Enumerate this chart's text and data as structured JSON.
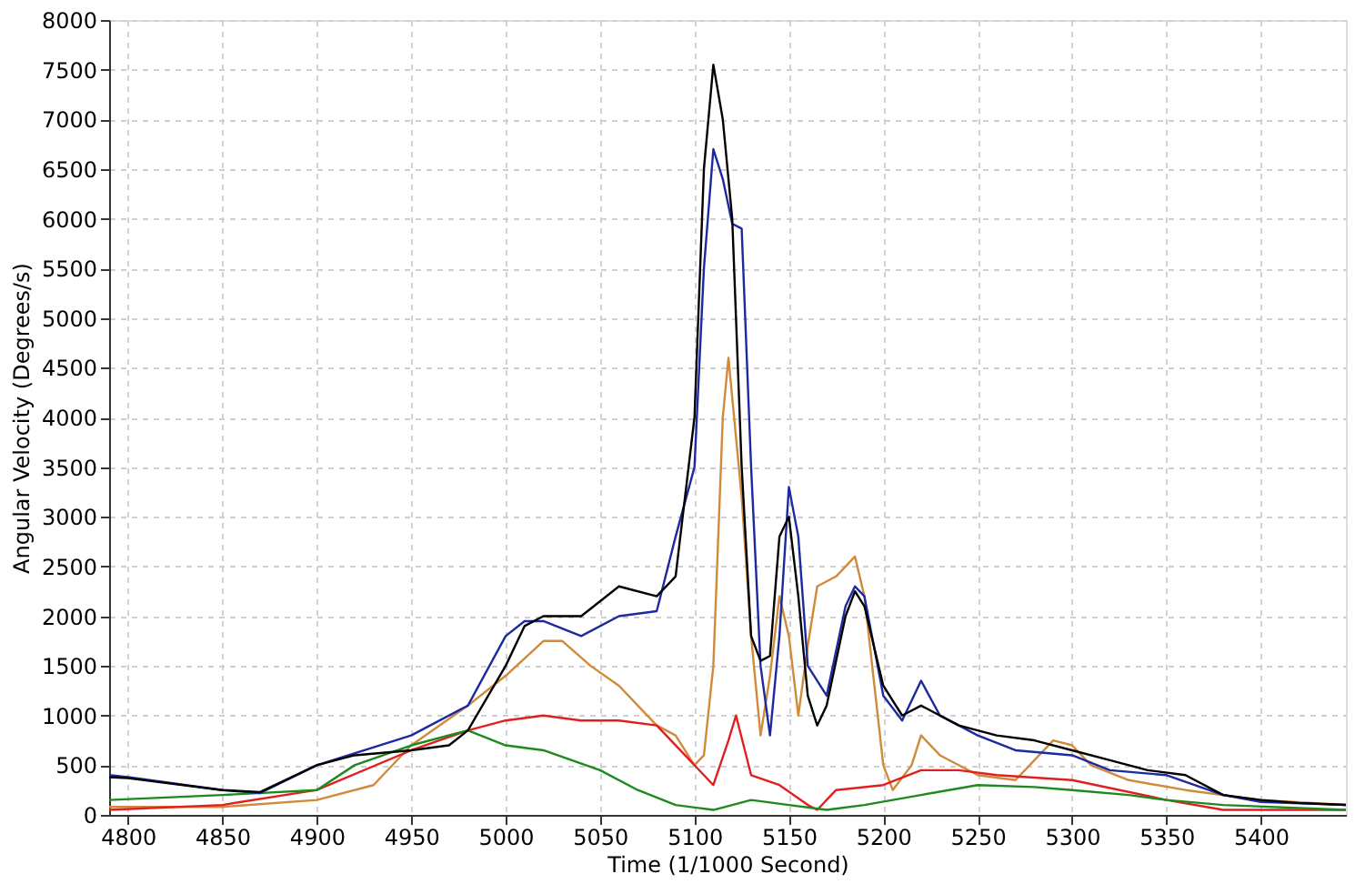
{
  "chart_data": {
    "type": "line",
    "xlabel": "Time (1/1000 Second)",
    "ylabel": "Angular Velocity (Degrees/s)",
    "xlim": [
      4790,
      5445
    ],
    "xticks": [
      4800,
      4850,
      4900,
      4950,
      5000,
      5050,
      5100,
      5150,
      5200,
      5250,
      5300,
      5350,
      5400
    ],
    "ylim": [
      0,
      8000
    ],
    "yticks": [
      0,
      500,
      1000,
      1500,
      2000,
      2500,
      3000,
      3500,
      4000,
      4500,
      5000,
      5500,
      6000,
      6500,
      7000,
      7500,
      8000
    ],
    "grid": true,
    "marker": "none",
    "line_style": "solid",
    "series": [
      {
        "color": "#d08a3a",
        "x": [
          4790,
          4850,
          4900,
          4930,
          4950,
          4980,
          5000,
          5020,
          5030,
          5045,
          5060,
          5080,
          5090,
          5100,
          5105,
          5110,
          5115,
          5118,
          5125,
          5130,
          5135,
          5140,
          5145,
          5150,
          5155,
          5160,
          5165,
          5175,
          5185,
          5190,
          5200,
          5205,
          5215,
          5220,
          5230,
          5250,
          5270,
          5290,
          5300,
          5310,
          5330,
          5360,
          5400,
          5445
        ],
        "values": [
          80,
          80,
          150,
          300,
          700,
          1100,
          1400,
          1750,
          1750,
          1500,
          1300,
          900,
          800,
          500,
          600,
          1500,
          4000,
          4600,
          3200,
          1800,
          800,
          1400,
          2200,
          1800,
          1000,
          1700,
          2300,
          2400,
          2600,
          2200,
          500,
          250,
          500,
          800,
          600,
          400,
          350,
          750,
          700,
          500,
          350,
          250,
          150,
          100
        ]
      },
      {
        "color": "#e02020",
        "x": [
          4790,
          4850,
          4900,
          4950,
          4980,
          5000,
          5020,
          5040,
          5060,
          5080,
          5095,
          5110,
          5118,
          5122,
          5130,
          5145,
          5160,
          5165,
          5175,
          5200,
          5220,
          5240,
          5260,
          5300,
          5350,
          5380,
          5445
        ],
        "values": [
          50,
          100,
          250,
          650,
          850,
          950,
          1000,
          950,
          950,
          900,
          600,
          300,
          750,
          1000,
          400,
          300,
          100,
          50,
          250,
          300,
          450,
          450,
          400,
          350,
          150,
          50,
          50
        ]
      },
      {
        "color": "#1e8a1e",
        "x": [
          4790,
          4850,
          4900,
          4920,
          4950,
          4980,
          5000,
          5020,
          5050,
          5070,
          5090,
          5110,
          5130,
          5150,
          5170,
          5190,
          5220,
          5250,
          5280,
          5300,
          5330,
          5350,
          5380,
          5445
        ],
        "values": [
          150,
          200,
          250,
          500,
          700,
          850,
          700,
          650,
          450,
          250,
          100,
          50,
          150,
          100,
          50,
          100,
          200,
          300,
          280,
          250,
          200,
          150,
          100,
          50
        ]
      },
      {
        "color": "#1c2aa0",
        "x": [
          4790,
          4800,
          4850,
          4870,
          4900,
          4950,
          4980,
          5000,
          5010,
          5020,
          5040,
          5060,
          5080,
          5090,
          5100,
          5105,
          5110,
          5115,
          5120,
          5125,
          5130,
          5135,
          5140,
          5145,
          5150,
          5155,
          5160,
          5170,
          5180,
          5185,
          5190,
          5200,
          5210,
          5220,
          5230,
          5250,
          5270,
          5300,
          5320,
          5350,
          5380,
          5400,
          5445
        ],
        "values": [
          400,
          380,
          250,
          220,
          500,
          800,
          1100,
          1800,
          1950,
          1950,
          1800,
          2000,
          2050,
          2800,
          3500,
          5500,
          6700,
          6400,
          5950,
          5900,
          3500,
          1500,
          800,
          1800,
          3300,
          2800,
          1500,
          1200,
          2100,
          2300,
          2200,
          1200,
          950,
          1350,
          1000,
          800,
          650,
          600,
          450,
          400,
          200,
          130,
          100
        ]
      },
      {
        "color": "#000000",
        "x": [
          4790,
          4800,
          4850,
          4870,
          4900,
          4920,
          4950,
          4970,
          4980,
          5000,
          5010,
          5020,
          5040,
          5060,
          5080,
          5090,
          5100,
          5105,
          5110,
          5115,
          5120,
          5125,
          5130,
          5135,
          5140,
          5145,
          5150,
          5155,
          5160,
          5165,
          5170,
          5180,
          5185,
          5190,
          5200,
          5210,
          5220,
          5240,
          5260,
          5280,
          5300,
          5320,
          5340,
          5360,
          5380,
          5400,
          5420,
          5445
        ],
        "values": [
          380,
          370,
          250,
          230,
          500,
          600,
          650,
          700,
          850,
          1500,
          1900,
          2000,
          2000,
          2300,
          2200,
          2400,
          4000,
          6500,
          7550,
          7000,
          6000,
          3500,
          1800,
          1550,
          1600,
          2800,
          3000,
          2200,
          1200,
          900,
          1100,
          2000,
          2250,
          2100,
          1300,
          1000,
          1100,
          900,
          800,
          750,
          650,
          550,
          450,
          400,
          200,
          150,
          120,
          100
        ]
      }
    ]
  }
}
